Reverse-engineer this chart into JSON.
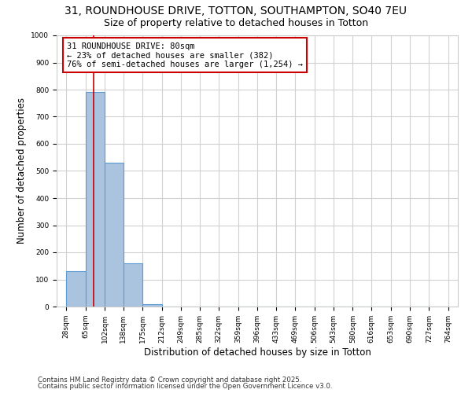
{
  "title1": "31, ROUNDHOUSE DRIVE, TOTTON, SOUTHAMPTON, SO40 7EU",
  "title2": "Size of property relative to detached houses in Totton",
  "xlabel": "Distribution of detached houses by size in Totton",
  "ylabel": "Number of detached properties",
  "bin_edges": [
    28,
    65,
    102,
    138,
    175,
    212,
    249,
    285,
    322,
    359,
    396,
    433,
    469,
    506,
    543,
    580,
    616,
    653,
    690,
    727,
    764
  ],
  "bar_heights": [
    130,
    790,
    530,
    160,
    10,
    0,
    0,
    0,
    0,
    0,
    0,
    0,
    0,
    0,
    0,
    0,
    0,
    0,
    0,
    0
  ],
  "bar_color": "#aac4df",
  "bar_edge_color": "#5b9bd5",
  "grid_color": "#d0d0d0",
  "bg_color": "#ffffff",
  "vline_x": 80,
  "vline_color": "#cc0000",
  "annotation_text": "31 ROUNDHOUSE DRIVE: 80sqm\n← 23% of detached houses are smaller (382)\n76% of semi-detached houses are larger (1,254) →",
  "annotation_box_color": "#ffffff",
  "annotation_box_edge": "#cc0000",
  "ylim": [
    0,
    1000
  ],
  "yticks": [
    0,
    100,
    200,
    300,
    400,
    500,
    600,
    700,
    800,
    900,
    1000
  ],
  "footnote1": "Contains HM Land Registry data © Crown copyright and database right 2025.",
  "footnote2": "Contains public sector information licensed under the Open Government Licence v3.0.",
  "title1_fontsize": 10,
  "title2_fontsize": 9,
  "tick_fontsize": 6.5,
  "ylabel_fontsize": 8.5,
  "xlabel_fontsize": 8.5,
  "annot_fontsize": 7.5,
  "footnote_fontsize": 6.2
}
